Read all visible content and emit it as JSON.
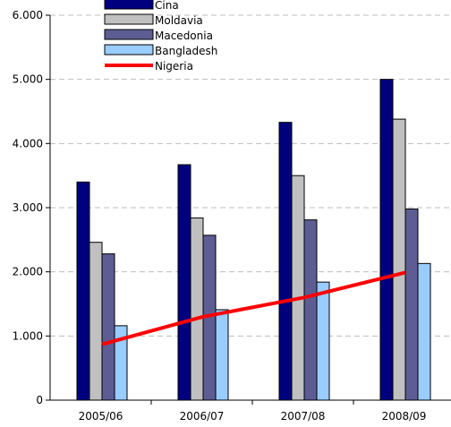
{
  "chart_data": {
    "type": "bar",
    "categories": [
      "2005/06",
      "2006/07",
      "2007/08",
      "2008/09"
    ],
    "series": [
      {
        "name": "Cina",
        "values": [
          3400,
          3670,
          4330,
          5000
        ],
        "color": "#00007f",
        "kind": "bar"
      },
      {
        "name": "Moldavia",
        "values": [
          2460,
          2840,
          3500,
          4380
        ],
        "color": "#c0c0c0",
        "kind": "bar"
      },
      {
        "name": "Macedonia",
        "values": [
          2280,
          2570,
          2810,
          2980
        ],
        "color": "#5d5d94",
        "kind": "bar"
      },
      {
        "name": "Bangladesh",
        "values": [
          1160,
          1410,
          1840,
          2130
        ],
        "color": "#99ccff",
        "kind": "bar"
      },
      {
        "name": "Nigeria",
        "values": [
          870,
          1300,
          1600,
          1990
        ],
        "color": "#ff0000",
        "kind": "line"
      }
    ],
    "ylim": [
      0,
      6000
    ],
    "yticks": [
      {
        "value": 0,
        "label": "0"
      },
      {
        "value": 1000,
        "label": "1.000"
      },
      {
        "value": 2000,
        "label": "2.000"
      },
      {
        "value": 3000,
        "label": "3.000"
      },
      {
        "value": 4000,
        "label": "4.000"
      },
      {
        "value": 5000,
        "label": "5.000"
      },
      {
        "value": 6000,
        "label": "6.000"
      }
    ],
    "grid": true,
    "legend_position": "top-left"
  }
}
